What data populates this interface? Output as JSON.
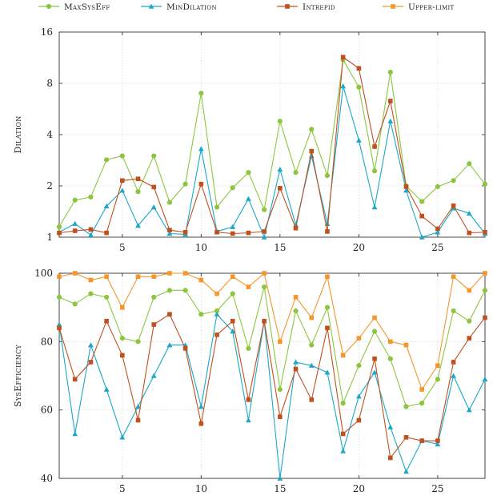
{
  "colors": {
    "MaxSysEff": "#8cc63f",
    "MinDilation": "#1aa7c8",
    "Intrepid": "#c0501e",
    "Upper-limit": "#f5962a"
  },
  "markers": {
    "MaxSysEff": "circle",
    "MinDilation": "triangle",
    "Intrepid": "square",
    "Upper-limit": "square"
  },
  "legend": [
    "MaxSysEff",
    "MinDilation",
    "Intrepid",
    "Upper-limit"
  ],
  "chart_data": [
    {
      "type": "line",
      "ylabel": "Dilation",
      "yscale": "log2",
      "ylim": [
        1,
        16
      ],
      "yticks": [
        1,
        2,
        4,
        8,
        16
      ],
      "xlim": [
        1,
        28
      ],
      "xticks": [
        5,
        10,
        15,
        20,
        25
      ],
      "grid": true,
      "x": [
        1,
        2,
        3,
        4,
        5,
        6,
        7,
        8,
        9,
        10,
        11,
        12,
        13,
        14,
        15,
        16,
        17,
        18,
        19,
        20,
        21,
        22,
        23,
        24,
        25,
        26,
        27,
        28
      ],
      "series": [
        {
          "name": "MaxSysEff",
          "values": [
            1.15,
            1.65,
            1.72,
            2.85,
            3.0,
            1.85,
            3.0,
            1.6,
            2.05,
            7.0,
            1.5,
            1.95,
            2.4,
            1.45,
            4.8,
            2.4,
            4.3,
            2.3,
            11.0,
            7.6,
            2.45,
            9.3,
            2.0,
            1.62,
            1.98,
            2.15,
            2.7,
            2.05
          ]
        },
        {
          "name": "MinDilation",
          "values": [
            1.07,
            1.2,
            1.03,
            1.52,
            1.88,
            1.17,
            1.5,
            1.05,
            1.04,
            3.3,
            1.08,
            1.15,
            1.68,
            1.0,
            2.5,
            1.18,
            3.0,
            1.2,
            7.7,
            3.7,
            1.5,
            4.8,
            1.88,
            1.0,
            1.07,
            1.48,
            1.38,
            1.05
          ]
        },
        {
          "name": "Intrepid",
          "values": [
            1.06,
            1.09,
            1.11,
            1.06,
            2.15,
            2.2,
            1.97,
            1.1,
            1.07,
            2.05,
            1.07,
            1.05,
            1.06,
            1.08,
            1.94,
            1.13,
            3.2,
            1.08,
            11.4,
            9.8,
            3.4,
            6.3,
            1.98,
            1.33,
            1.12,
            1.53,
            1.06,
            1.07
          ]
        }
      ]
    },
    {
      "type": "line",
      "ylabel": "SysEfficiency",
      "ylim": [
        40,
        100
      ],
      "yticks": [
        40,
        60,
        80,
        100
      ],
      "xlim": [
        1,
        28
      ],
      "xticks": [
        5,
        10,
        15,
        20,
        25
      ],
      "grid": true,
      "x": [
        1,
        2,
        3,
        4,
        5,
        6,
        7,
        8,
        9,
        10,
        11,
        12,
        13,
        14,
        15,
        16,
        17,
        18,
        19,
        20,
        21,
        22,
        23,
        24,
        25,
        26,
        27,
        28
      ],
      "series": [
        {
          "name": "MaxSysEff",
          "values": [
            93,
            91,
            94,
            93,
            81,
            80,
            93,
            95,
            95,
            88,
            89,
            94,
            78,
            96,
            66,
            89,
            79,
            90,
            62,
            73,
            83,
            75,
            61,
            62,
            69,
            89,
            86,
            95
          ]
        },
        {
          "name": "MinDilation",
          "values": [
            85,
            53,
            79,
            66,
            52,
            61,
            70,
            79,
            79,
            61,
            88,
            83,
            57,
            86,
            40,
            74,
            73,
            71,
            48,
            64,
            71,
            55,
            42,
            51,
            50,
            70,
            60,
            69
          ]
        },
        {
          "name": "Intrepid",
          "values": [
            84,
            69,
            74,
            86,
            76,
            57,
            85,
            88,
            78,
            56,
            82,
            86,
            63,
            86,
            58,
            72,
            63,
            84,
            53,
            57,
            75,
            46,
            52,
            51,
            51,
            74,
            81,
            87
          ]
        },
        {
          "name": "Upper-limit",
          "values": [
            99,
            100,
            98,
            99,
            90,
            99,
            99,
            100,
            100,
            98,
            94,
            99,
            96,
            100,
            80,
            93,
            87,
            99,
            76,
            81,
            87,
            80,
            79,
            66,
            73,
            99,
            95,
            100
          ]
        }
      ]
    }
  ]
}
